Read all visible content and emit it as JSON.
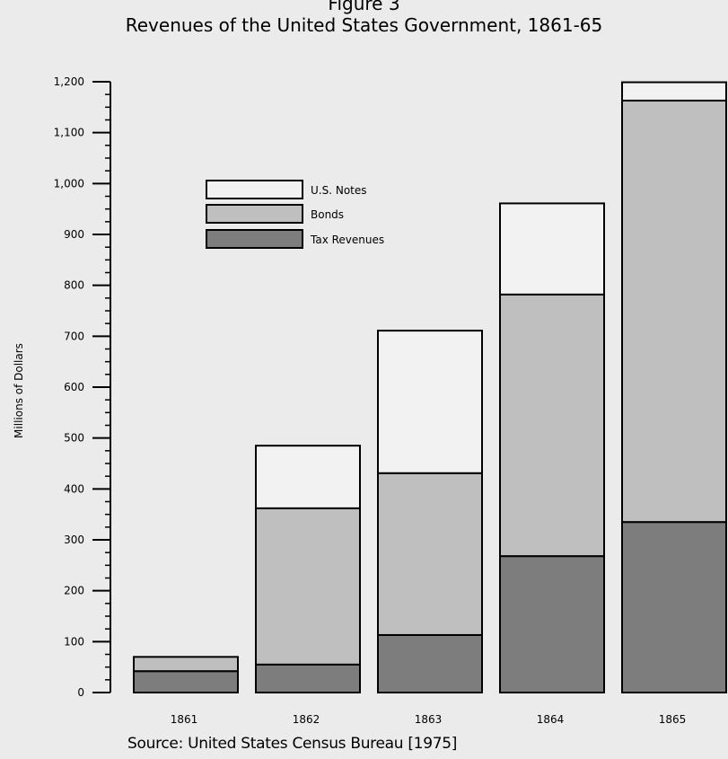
{
  "figure": {
    "label": "Figure 3",
    "title": "Revenues of the United States Government, 1861-65",
    "source": "Source: United States Census Bureau [1975]"
  },
  "chart_data": {
    "type": "bar",
    "stacked": true,
    "title": "Revenues of the United States Government, 1861-65",
    "xlabel": "",
    "ylabel": "Millions of Dollars",
    "ylim": [
      0,
      1200
    ],
    "yticks": [
      0,
      100,
      200,
      300,
      400,
      500,
      600,
      700,
      800,
      900,
      1000,
      1100,
      1200
    ],
    "ytick_labels": [
      "0",
      "100",
      "200",
      "300",
      "400",
      "500",
      "600",
      "700",
      "800",
      "900",
      "1,000",
      "1,100",
      "1,200"
    ],
    "categories": [
      "1861",
      "1862",
      "1863",
      "1864",
      "1865"
    ],
    "series": [
      {
        "name": "Tax Revenues",
        "color": "#7d7d7d",
        "values": [
          42,
          55,
          113,
          268,
          335
        ]
      },
      {
        "name": "Bonds",
        "color": "#bfbfbf",
        "values": [
          28,
          307,
          318,
          514,
          828
        ]
      },
      {
        "name": "U.S. Notes",
        "color": "#f2f2f2",
        "values": [
          0,
          123,
          280,
          179,
          36
        ]
      }
    ],
    "legend_order": [
      "U.S. Notes",
      "Bonds",
      "Tax Revenues"
    ],
    "legend_position": "upper-left"
  }
}
